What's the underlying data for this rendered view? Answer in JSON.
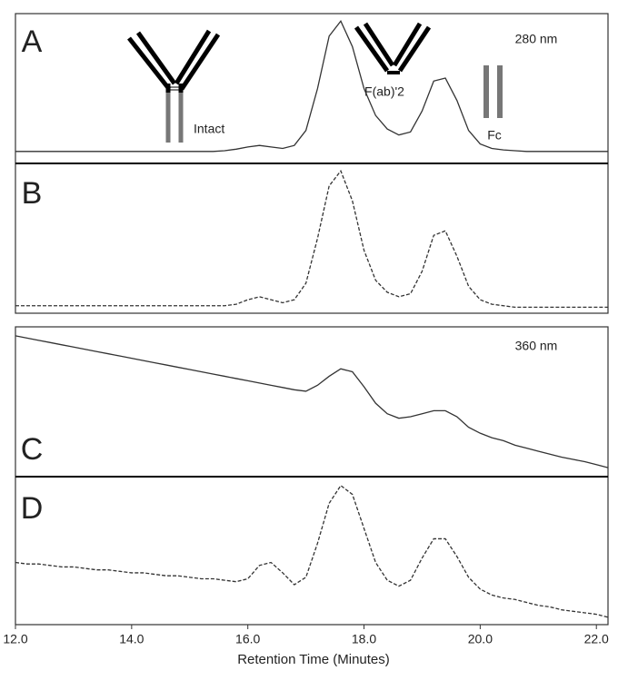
{
  "chart_data": {
    "type": "line",
    "xlabel": "Retention Time (Minutes)",
    "xlim": [
      12,
      22.2
    ],
    "xticks": [
      {
        "value": 12,
        "label": "12.0"
      },
      {
        "value": 14,
        "label": "14.0"
      },
      {
        "value": 16,
        "label": "16.0"
      },
      {
        "value": 18,
        "label": "18.0"
      },
      {
        "value": 20,
        "label": "20.0"
      },
      {
        "value": 22,
        "label": "22.0"
      }
    ],
    "x": [
      12.0,
      12.2,
      12.4,
      12.6,
      12.8,
      13.0,
      13.2,
      13.4,
      13.6,
      13.8,
      14.0,
      14.2,
      14.4,
      14.6,
      14.8,
      15.0,
      15.2,
      15.4,
      15.6,
      15.8,
      16.0,
      16.2,
      16.4,
      16.6,
      16.8,
      17.0,
      17.2,
      17.4,
      17.6,
      17.8,
      18.0,
      18.2,
      18.4,
      18.6,
      18.8,
      19.0,
      19.2,
      19.4,
      19.6,
      19.8,
      20.0,
      20.2,
      20.4,
      20.6,
      20.8,
      21.0,
      21.2,
      21.4,
      21.6,
      21.8,
      22.0,
      22.2
    ],
    "panels": [
      {
        "label": "A",
        "ylim": [
          0,
          100
        ],
        "annotations": [
          "280 nm",
          "Intact",
          "F(ab)'2",
          "Fc"
        ],
        "series": [
          {
            "color": "#333333",
            "style": "solid",
            "values": [
              8,
              8,
              8,
              8,
              8,
              8,
              8,
              8,
              8,
              8,
              8,
              8,
              8,
              8,
              8,
              8,
              8,
              8,
              8.5,
              9.5,
              11,
              12,
              11,
              10,
              12,
              22,
              50,
              85,
              95,
              78,
              50,
              32,
              23,
              19,
              21,
              35,
              55,
              57,
              42,
              22,
              13,
              10,
              9,
              8.5,
              8,
              8,
              8,
              8,
              8,
              8,
              8,
              8
            ]
          }
        ]
      },
      {
        "label": "B",
        "ylim": [
          0,
          100
        ],
        "annotations": [],
        "series": [
          {
            "color": "#333333",
            "style": "dashed",
            "values": [
              5,
              5,
              5,
              5,
              5,
              5,
              5,
              5,
              5,
              5,
              5,
              5,
              5,
              5,
              5,
              5,
              5,
              5,
              5,
              6,
              9,
              11,
              9,
              7,
              9,
              20,
              50,
              85,
              95,
              75,
              42,
              22,
              14,
              11,
              13,
              28,
              52,
              55,
              38,
              18,
              9,
              6,
              5,
              4,
              4,
              4,
              4,
              4,
              4,
              4,
              4,
              4
            ]
          }
        ]
      },
      {
        "label": "C",
        "ylim": [
          0,
          100
        ],
        "annotations": [
          "360 nm"
        ],
        "series": [
          {
            "color": "#333333",
            "style": "solid",
            "values": [
              94,
              92.5,
              91,
              89.5,
              88,
              86.5,
              85,
              83.5,
              82,
              80.5,
              79,
              77.5,
              76,
              74.5,
              73,
              71.5,
              70,
              68.5,
              67,
              65.5,
              64,
              62.5,
              61,
              59.5,
              58,
              57,
              61,
              67,
              72,
              70,
              60,
              49,
              42,
              39,
              40,
              42,
              44,
              44,
              40,
              33,
              29,
              26,
              24,
              21,
              19,
              17,
              15,
              13,
              11.5,
              10,
              8,
              6
            ]
          }
        ]
      },
      {
        "label": "D",
        "ylim": [
          0,
          100
        ],
        "annotations": [],
        "series": [
          {
            "color": "#333333",
            "style": "dashed",
            "values": [
              42,
              41,
              41,
              40,
              39,
              39,
              38,
              37,
              37,
              36,
              35,
              35,
              34,
              33,
              33,
              32,
              31,
              31,
              30,
              29,
              31,
              40,
              42,
              35,
              27,
              32,
              55,
              82,
              94,
              88,
              65,
              42,
              30,
              26,
              30,
              45,
              58,
              58,
              46,
              32,
              24,
              20,
              18,
              17,
              15,
              13,
              12,
              10,
              9,
              8,
              7,
              5
            ]
          }
        ]
      }
    ]
  }
}
